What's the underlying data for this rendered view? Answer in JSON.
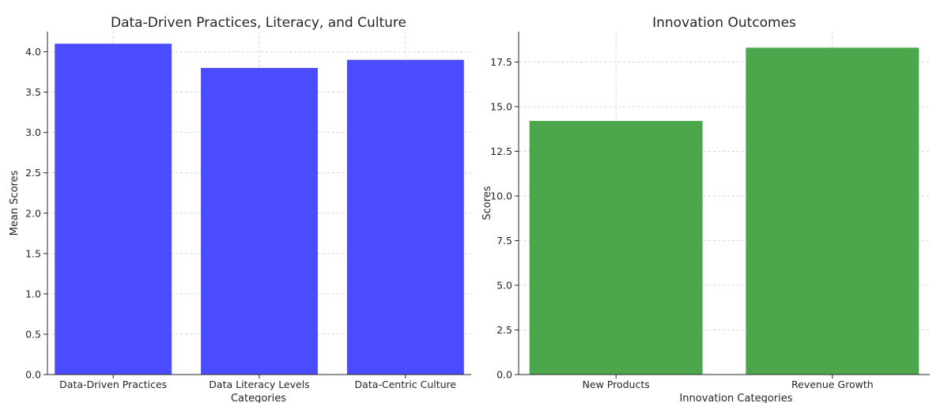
{
  "chart_data": [
    {
      "type": "bar",
      "title": "Data-Driven Practices, Literacy, and Culture",
      "xlabel": "Categories",
      "ylabel": "Mean Scores",
      "categories": [
        "Data-Driven Practices",
        "Data Literacy Levels",
        "Data-Centric Culture"
      ],
      "values": [
        4.1,
        3.8,
        3.9
      ],
      "ylim": [
        0,
        4.25
      ],
      "yticks": [
        "0.0",
        "0.5",
        "1.0",
        "1.5",
        "2.0",
        "2.5",
        "3.0",
        "3.5",
        "4.0"
      ],
      "color": "#4b4bff",
      "grid": true
    },
    {
      "type": "bar",
      "title": "Innovation Outcomes",
      "xlabel": "Innovation Categories",
      "ylabel": "Scores",
      "categories": [
        "New Products",
        "Revenue Growth"
      ],
      "values": [
        14.2,
        18.3
      ],
      "ylim": [
        0,
        19.2
      ],
      "yticks": [
        "0.0",
        "2.5",
        "5.0",
        "7.5",
        "10.0",
        "12.5",
        "15.0",
        "17.5"
      ],
      "color": "#4ca64c",
      "grid": true
    }
  ]
}
